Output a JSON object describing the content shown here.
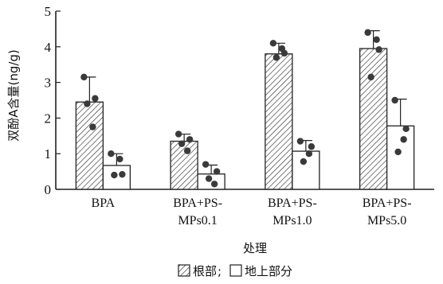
{
  "chart_data": {
    "type": "bar",
    "ylabel": "双酚A含量(ng/g)",
    "xlabel": "处理",
    "ylim": [
      0,
      5
    ],
    "yticks": [
      "0",
      "1",
      "2",
      "3",
      "4",
      "5"
    ],
    "categories": [
      [
        "BPA"
      ],
      [
        "BPA+PS-",
        "MPs0.1"
      ],
      [
        "BPA+PS-",
        "MPs1.0"
      ],
      [
        "BPA+PS-",
        "MPs5.0"
      ]
    ],
    "series": [
      {
        "name": "根部",
        "pattern": "hatched",
        "values": [
          2.45,
          1.35,
          3.8,
          3.95
        ],
        "errors": [
          0.7,
          0.2,
          0.3,
          0.5
        ],
        "points": [
          [
            3.15,
            2.4,
            1.75,
            2.55
          ],
          [
            1.55,
            1.28,
            1.08,
            1.4
          ],
          [
            4.1,
            3.7,
            3.95,
            3.82
          ],
          [
            4.4,
            3.15,
            4.2,
            3.92
          ]
        ]
      },
      {
        "name": "地上部分",
        "pattern": "open",
        "values": [
          0.67,
          0.43,
          1.07,
          1.78
        ],
        "errors": [
          0.33,
          0.25,
          0.3,
          0.75
        ],
        "points": [
          [
            1.0,
            0.4,
            0.85,
            0.42
          ],
          [
            0.7,
            0.3,
            0.15,
            0.5
          ],
          [
            1.35,
            0.78,
            1.0,
            1.2
          ],
          [
            2.5,
            1.05,
            1.4,
            1.7
          ]
        ]
      }
    ],
    "legend": {
      "placement": "bottom",
      "separator": "; ",
      "entries": [
        "根部",
        "地上部分"
      ]
    }
  }
}
